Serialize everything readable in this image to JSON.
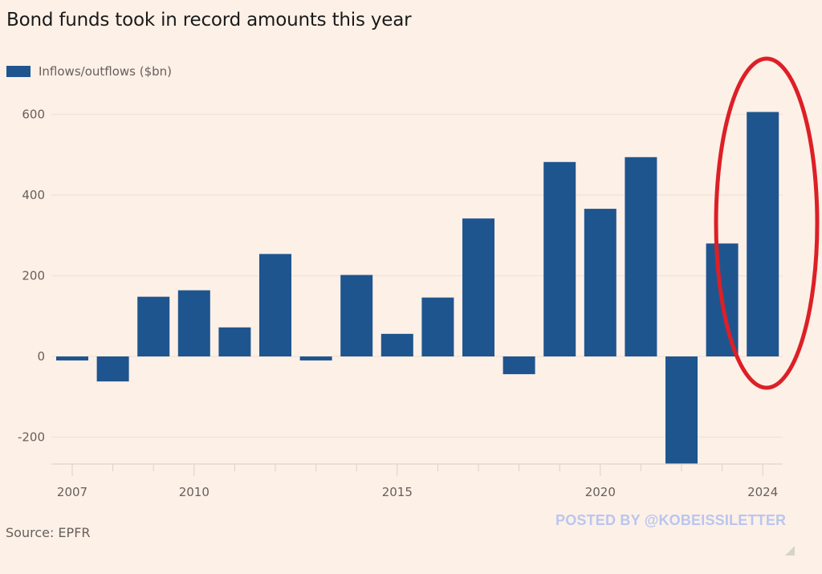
{
  "chart_data": {
    "type": "bar",
    "title": "Bond funds took in record amounts this year",
    "legend": [
      {
        "label": "Inflows/outflows ($bn)",
        "color": "#1f558e"
      }
    ],
    "legend_placement": "top-left",
    "xlabel": "",
    "ylabel": "",
    "categories": [
      "2007",
      "2008",
      "2009",
      "2010",
      "2011",
      "2012",
      "2013",
      "2014",
      "2015",
      "2016",
      "2017",
      "2018",
      "2019",
      "2020",
      "2021",
      "2022",
      "2023",
      "2024"
    ],
    "values": [
      -10,
      -62,
      148,
      164,
      72,
      254,
      -10,
      202,
      56,
      146,
      342,
      -44,
      482,
      366,
      494,
      -268,
      280,
      606
    ],
    "ylim": [
      -268,
      640
    ],
    "yticks": [
      -200,
      0,
      200,
      400,
      600
    ],
    "ytick_labels": [
      "-200",
      "0",
      "200",
      "400",
      "600"
    ],
    "xtick_labels": [
      {
        "category": "2007",
        "label": "2007"
      },
      {
        "category": "2010",
        "label": "2010"
      },
      {
        "category": "2015",
        "label": "2015"
      },
      {
        "category": "2020",
        "label": "2020"
      },
      {
        "category": "2024",
        "label": "2024"
      }
    ],
    "grid": true,
    "annotation": {
      "type": "ellipse",
      "color": "#dd1f26",
      "highlights": "2024",
      "description": "Red circle around 2023-2024 bars"
    },
    "source": "Source: EPFR"
  },
  "watermark": "POSTED BY @KOBEISSILETTER",
  "colors": {
    "background": "#fdf0e7",
    "bar": "#1f558e",
    "annotation": "#dd1f26",
    "watermark": "#b9c6ef"
  }
}
